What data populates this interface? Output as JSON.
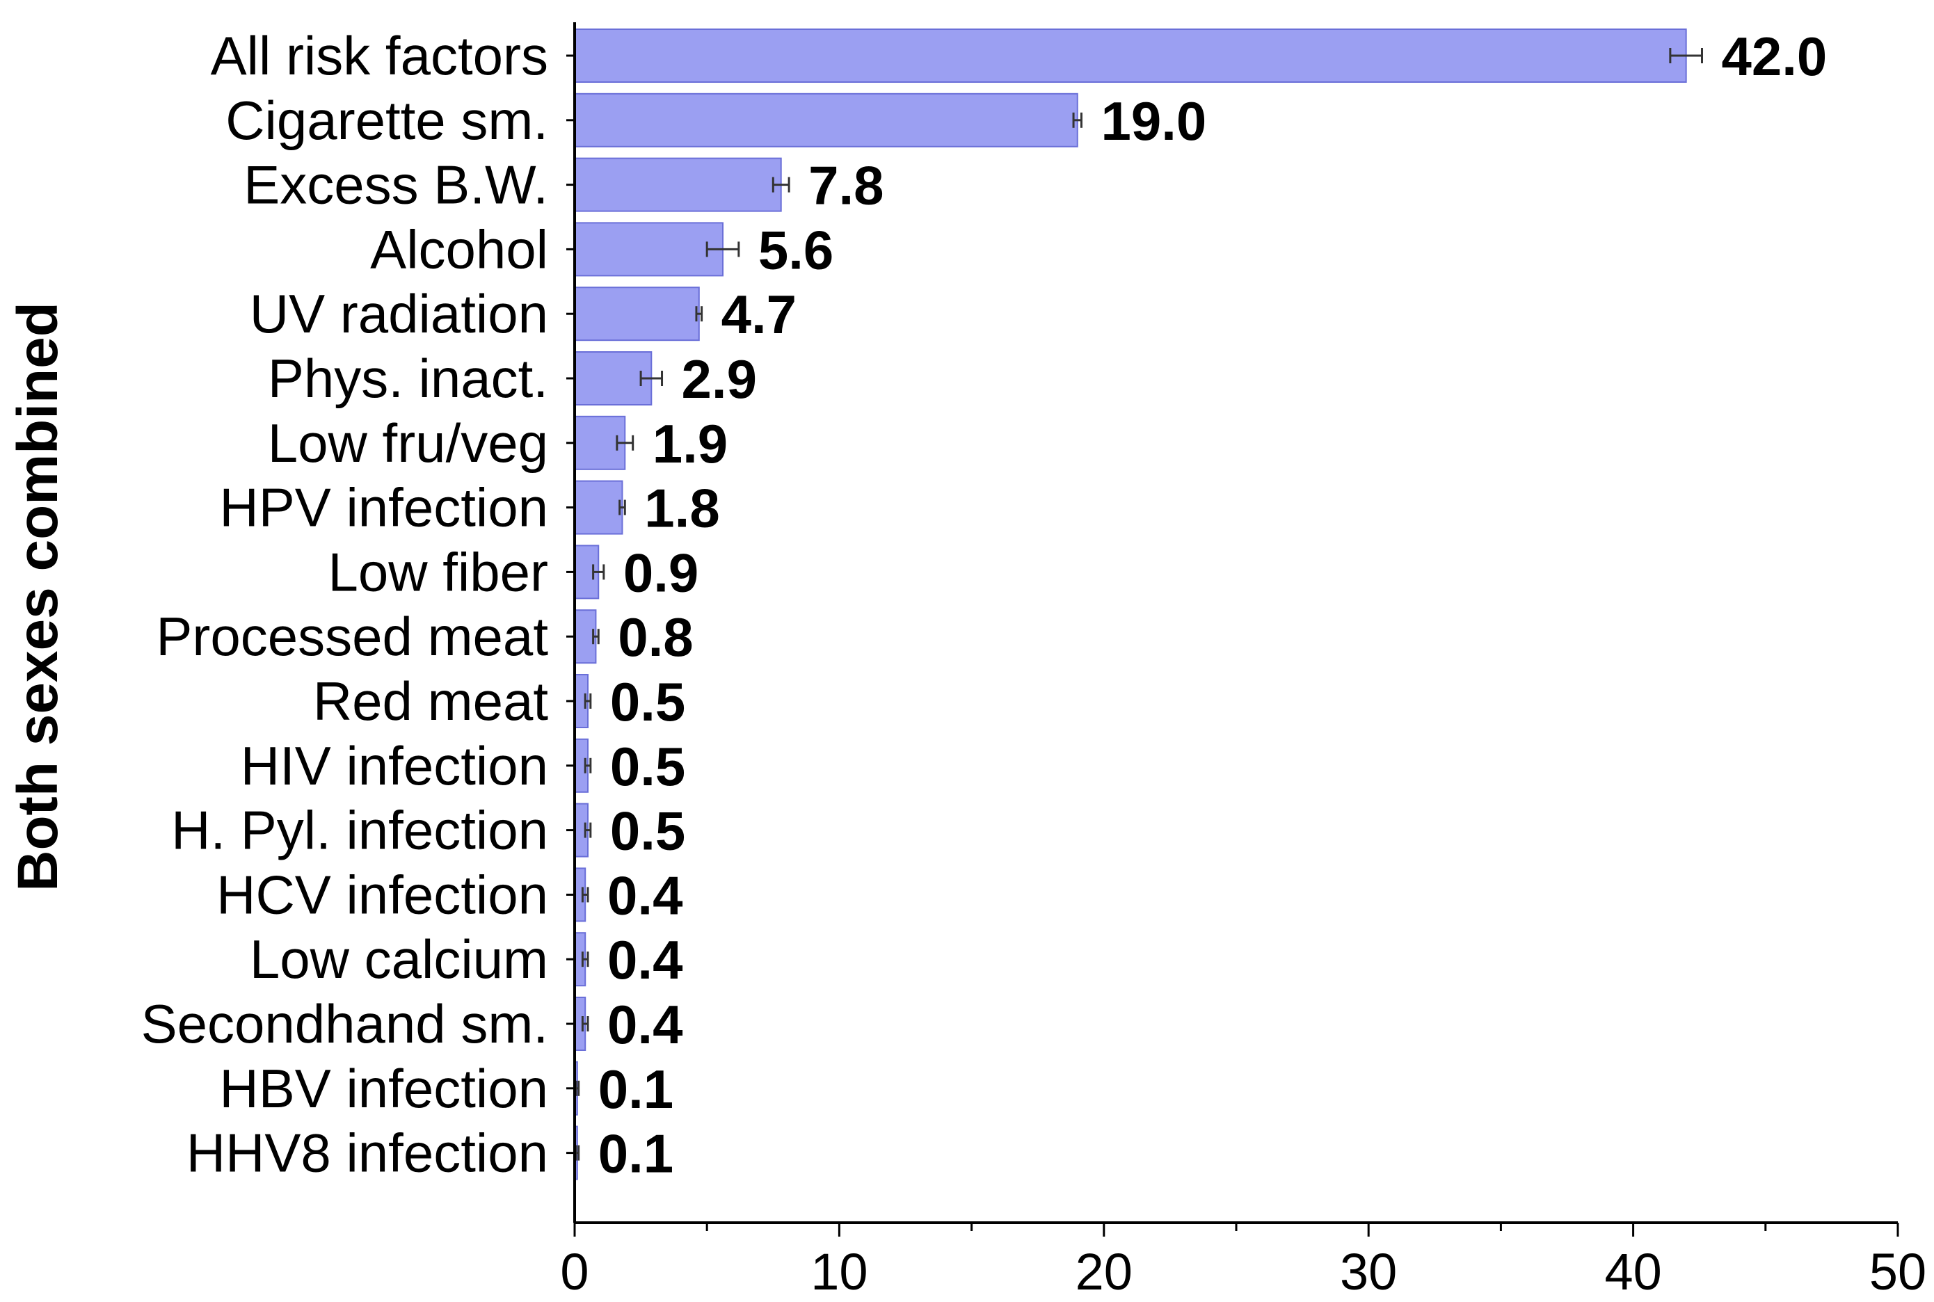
{
  "chart_data": {
    "type": "bar",
    "orientation": "horizontal",
    "ylabel": "Both sexes combined",
    "xlabel": "",
    "xlim": [
      0,
      50
    ],
    "x_ticks": [
      "0",
      "10",
      "20",
      "30",
      "40",
      "50"
    ],
    "grid": false,
    "legend": "none",
    "bar_color": "#9b9ff2",
    "bar_edge_color": "#6a6fd8",
    "categories": [
      "All risk factors",
      "Cigarette sm.",
      "Excess B.W.",
      "Alcohol",
      "UV radiation",
      "Phys. inact.",
      "Low fru/veg",
      "HPV infection",
      "Low fiber",
      "Processed meat",
      "Red meat",
      "HIV infection",
      "H. Pyl. infection",
      "HCV infection",
      "Low calcium",
      "Secondhand sm.",
      "HBV infection",
      "HHV8 infection"
    ],
    "values": [
      42.0,
      19.0,
      7.8,
      5.6,
      4.7,
      2.9,
      1.9,
      1.8,
      0.9,
      0.8,
      0.5,
      0.5,
      0.5,
      0.4,
      0.4,
      0.4,
      0.1,
      0.1
    ],
    "value_labels": [
      "42.0",
      "19.0",
      "7.8",
      "5.6",
      "4.7",
      "2.9",
      "1.9",
      "1.8",
      "0.9",
      "0.8",
      "0.5",
      "0.5",
      "0.5",
      "0.4",
      "0.4",
      "0.4",
      "0.1",
      "0.1"
    ],
    "error": [
      0.6,
      0.15,
      0.3,
      0.6,
      0.1,
      0.4,
      0.3,
      0.1,
      0.2,
      0.1,
      0.1,
      0.1,
      0.1,
      0.1,
      0.1,
      0.1,
      0.05,
      0.05
    ]
  }
}
